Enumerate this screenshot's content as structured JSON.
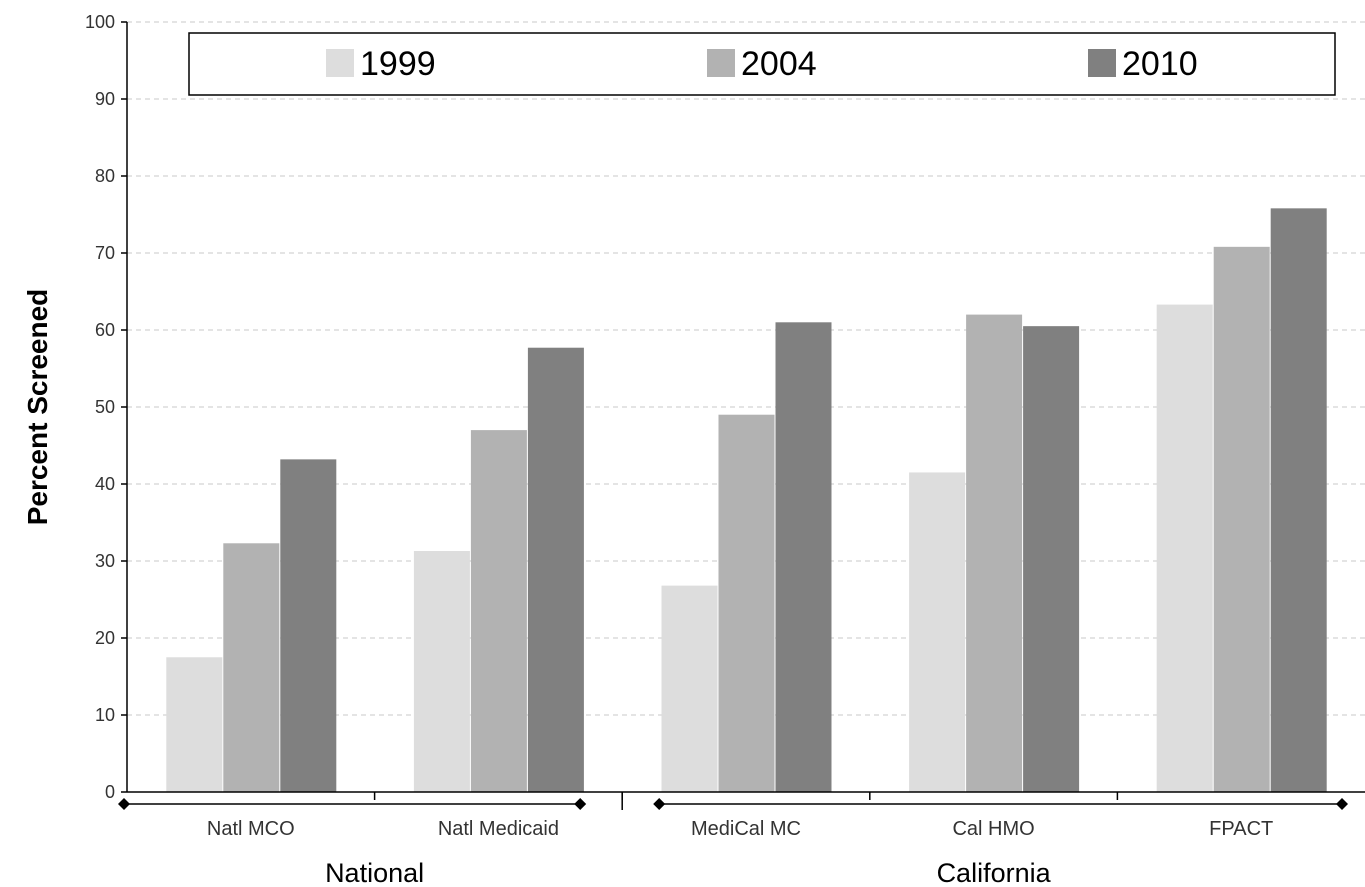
{
  "chart_data": {
    "type": "bar",
    "title": "",
    "ylabel": "Percent Screened",
    "xlabel": "",
    "ylim": [
      0,
      100
    ],
    "yticks": [
      0,
      10,
      20,
      30,
      40,
      50,
      60,
      70,
      80,
      90,
      100
    ],
    "grid": true,
    "legend_position": "top",
    "categories": [
      "Natl MCO",
      "Natl Medicaid",
      "MediCal MC",
      "Cal HMO",
      "FPACT"
    ],
    "groups": [
      {
        "label": "National",
        "categories": [
          "Natl MCO",
          "Natl Medicaid"
        ]
      },
      {
        "label": "California",
        "categories": [
          "MediCal MC",
          "Cal HMO",
          "FPACT"
        ]
      }
    ],
    "series": [
      {
        "name": "1999",
        "color": "#dddddd",
        "values": [
          17.5,
          31.3,
          26.8,
          41.5,
          63.3
        ]
      },
      {
        "name": "2004",
        "color": "#b2b2b2",
        "values": [
          32.3,
          47.0,
          49.0,
          62.0,
          70.8
        ]
      },
      {
        "name": "2010",
        "color": "#808080",
        "values": [
          43.2,
          57.7,
          61.0,
          60.5,
          75.8
        ]
      }
    ]
  }
}
